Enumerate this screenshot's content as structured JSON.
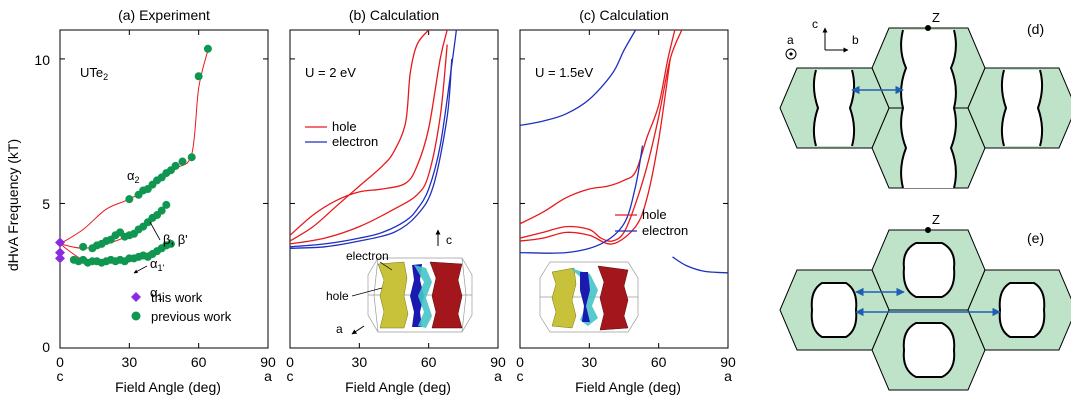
{
  "y_axis": {
    "label": "dHvA Frequency (kT)",
    "ticks": [
      "0",
      "5",
      "10"
    ]
  },
  "x_axis": {
    "label": "Field Angle (deg)",
    "ticks": [
      "0",
      "30",
      "60",
      "90"
    ],
    "end_left": "c",
    "end_right": "a"
  },
  "panel_a": {
    "title": "(a) Experiment",
    "compound": "UTe",
    "compound_sub": "2",
    "branch_labels": {
      "alpha2": "α",
      "alpha2_sub": "2",
      "beta": "β, β'",
      "alpha1p": "α",
      "alpha1p_sub": "1'",
      "alpha1": "α",
      "alpha1_sub": "1"
    },
    "legend": {
      "this_work": "this work",
      "previous_work": "previous work"
    }
  },
  "panel_b": {
    "title": "(b) Calculation",
    "u_label": "U = 2 eV",
    "legend": {
      "hole": "hole",
      "electron": "electron"
    },
    "fs_labels": {
      "electron": "electron",
      "hole": "hole",
      "axis_c": "c",
      "axis_a": "a"
    }
  },
  "panel_c": {
    "title": "(c) Calculation",
    "u_label": "U = 1.5eV",
    "legend": {
      "hole": "hole",
      "electron": "electron"
    }
  },
  "panel_d": {
    "label": "(d)",
    "z_point": "Z",
    "axis_c": "c",
    "axis_b": "b",
    "axis_a": "a"
  },
  "panel_e": {
    "label": "(e)",
    "z_point": "Z"
  },
  "colors": {
    "hole": "#e8191c",
    "electron": "#1f2fbf",
    "this_work": "#8a2be2",
    "previous_work": "#0f9650",
    "bz_fill": "#bfe3c8",
    "arrow": "#1f5fb0"
  },
  "chart_data": [
    {
      "type": "scatter",
      "title": "(a) Experiment",
      "xlabel": "Field Angle (deg)",
      "ylabel": "dHvA Frequency (kT)",
      "xlim": [
        0,
        90
      ],
      "ylim": [
        0,
        11
      ],
      "series": [
        {
          "name": "this work",
          "marker": "diamond",
          "points": [
            [
              0,
              3.65
            ],
            [
              0,
              3.3
            ],
            [
              0,
              3.1
            ]
          ]
        },
        {
          "name": "previous work",
          "marker": "circle",
          "points": [
            [
              6,
              3.05
            ],
            [
              8,
              3.0
            ],
            [
              10,
              3.05
            ],
            [
              12,
              2.95
            ],
            [
              14,
              3.0
            ],
            [
              16,
              3.0
            ],
            [
              18,
              2.95
            ],
            [
              20,
              3.0
            ],
            [
              22,
              3.05
            ],
            [
              24,
              3.0
            ],
            [
              26,
              3.05
            ],
            [
              28,
              3.0
            ],
            [
              30,
              3.1
            ],
            [
              32,
              3.1
            ],
            [
              34,
              3.15
            ],
            [
              36,
              3.2
            ],
            [
              38,
              3.15
            ],
            [
              40,
              3.25
            ],
            [
              42,
              3.35
            ],
            [
              44,
              3.45
            ],
            [
              46,
              3.55
            ],
            [
              48,
              3.6
            ],
            [
              10,
              3.5
            ],
            [
              14,
              3.45
            ],
            [
              16,
              3.55
            ],
            [
              18,
              3.6
            ],
            [
              20,
              3.7
            ],
            [
              22,
              3.75
            ],
            [
              24,
              3.9
            ],
            [
              26,
              4.0
            ],
            [
              28,
              3.85
            ],
            [
              30,
              3.9
            ],
            [
              32,
              3.95
            ],
            [
              34,
              4.1
            ],
            [
              36,
              4.2
            ],
            [
              38,
              4.35
            ],
            [
              40,
              4.5
            ],
            [
              42,
              4.6
            ],
            [
              44,
              4.75
            ],
            [
              46,
              4.95
            ],
            [
              30,
              5.15
            ],
            [
              34,
              5.3
            ],
            [
              36,
              5.45
            ],
            [
              38,
              5.5
            ],
            [
              40,
              5.65
            ],
            [
              42,
              5.8
            ],
            [
              44,
              5.9
            ],
            [
              46,
              6.05
            ],
            [
              48,
              6.15
            ],
            [
              50,
              6.3
            ],
            [
              53,
              6.45
            ],
            [
              57,
              6.6
            ],
            [
              60,
              9.4
            ],
            [
              64,
              10.35
            ]
          ]
        }
      ],
      "lines": [
        {
          "name": "alpha1 branch",
          "x": [
            0,
            10,
            20,
            30,
            40,
            48
          ],
          "y": [
            3.6,
            3.05,
            2.95,
            3.1,
            3.35,
            3.75
          ]
        },
        {
          "name": "beta branch",
          "x": [
            0,
            10,
            20,
            30,
            40,
            46
          ],
          "y": [
            3.6,
            3.45,
            3.6,
            3.9,
            4.4,
            4.95
          ]
        },
        {
          "name": "alpha2 branch",
          "x": [
            0,
            10,
            20,
            30,
            40,
            50,
            57,
            60,
            64
          ],
          "y": [
            3.6,
            4.1,
            4.8,
            5.15,
            5.6,
            6.2,
            6.7,
            9.0,
            10.3
          ]
        }
      ]
    },
    {
      "type": "line",
      "title": "(b) Calculation U = 2 eV",
      "xlabel": "Field Angle (deg)",
      "xlim": [
        0,
        90
      ],
      "ylim": [
        0,
        11
      ],
      "series": [
        {
          "name": "hole",
          "x": [
            0,
            10,
            20,
            30,
            40,
            50,
            55,
            60,
            65,
            68
          ],
          "y": [
            3.9,
            4.6,
            5.1,
            5.4,
            5.5,
            5.7,
            6.3,
            7.6,
            10.0,
            11.0
          ]
        },
        {
          "name": "hole",
          "x": [
            0,
            10,
            20,
            30,
            40,
            45,
            50,
            52,
            55,
            60
          ],
          "y": [
            3.7,
            4.2,
            4.9,
            5.6,
            6.3,
            6.8,
            7.8,
            9.5,
            10.5,
            11.0
          ]
        },
        {
          "name": "hole",
          "x": [
            0,
            15,
            30,
            45,
            55,
            60,
            65,
            68
          ],
          "y": [
            3.6,
            3.8,
            4.2,
            4.8,
            5.3,
            6.0,
            8.0,
            10.5
          ]
        },
        {
          "name": "electron",
          "x": [
            0,
            15,
            30,
            40,
            50,
            55,
            60,
            65,
            70,
            72
          ],
          "y": [
            3.5,
            3.6,
            3.8,
            4.0,
            4.4,
            4.8,
            5.5,
            7.0,
            9.8,
            11.0
          ]
        },
        {
          "name": "electron",
          "x": [
            0,
            15,
            30,
            45,
            55,
            62,
            68,
            70
          ],
          "y": [
            3.45,
            3.5,
            3.7,
            4.0,
            4.6,
            5.6,
            8.0,
            10.0
          ]
        }
      ]
    },
    {
      "type": "line",
      "title": "(c) Calculation U = 1.5eV",
      "xlabel": "Field Angle (deg)",
      "xlim": [
        0,
        90
      ],
      "ylim": [
        0,
        11
      ],
      "series": [
        {
          "name": "hole",
          "x": [
            0,
            10,
            20,
            30,
            38,
            45,
            50,
            55,
            60,
            64,
            67
          ],
          "y": [
            4.3,
            4.7,
            5.2,
            5.5,
            5.6,
            5.8,
            6.1,
            7.3,
            8.4,
            10.0,
            11.0
          ]
        },
        {
          "name": "hole",
          "x": [
            0,
            10,
            20,
            30,
            35,
            40,
            45,
            50,
            55,
            60,
            65,
            70
          ],
          "y": [
            3.8,
            4.0,
            4.2,
            4.1,
            3.8,
            3.7,
            4.0,
            5.0,
            6.3,
            8.0,
            10.0,
            11.0
          ]
        },
        {
          "name": "hole",
          "x": [
            0,
            10,
            20,
            30,
            40,
            50,
            55,
            60,
            65
          ],
          "y": [
            3.7,
            3.8,
            4.0,
            3.9,
            3.6,
            4.2,
            5.2,
            7.2,
            10.0
          ]
        },
        {
          "name": "electron",
          "x": [
            0,
            10,
            20,
            30,
            40,
            45,
            50
          ],
          "y": [
            7.7,
            7.85,
            8.1,
            8.6,
            9.5,
            10.3,
            11.0
          ]
        },
        {
          "name": "electron",
          "x": [
            0,
            20,
            35,
            45,
            50,
            53
          ],
          "y": [
            3.3,
            3.3,
            3.6,
            4.3,
            5.6,
            7.0
          ]
        },
        {
          "name": "electron",
          "x": [
            66,
            72,
            80,
            90
          ],
          "y": [
            3.15,
            2.85,
            2.65,
            2.6
          ]
        }
      ]
    }
  ]
}
